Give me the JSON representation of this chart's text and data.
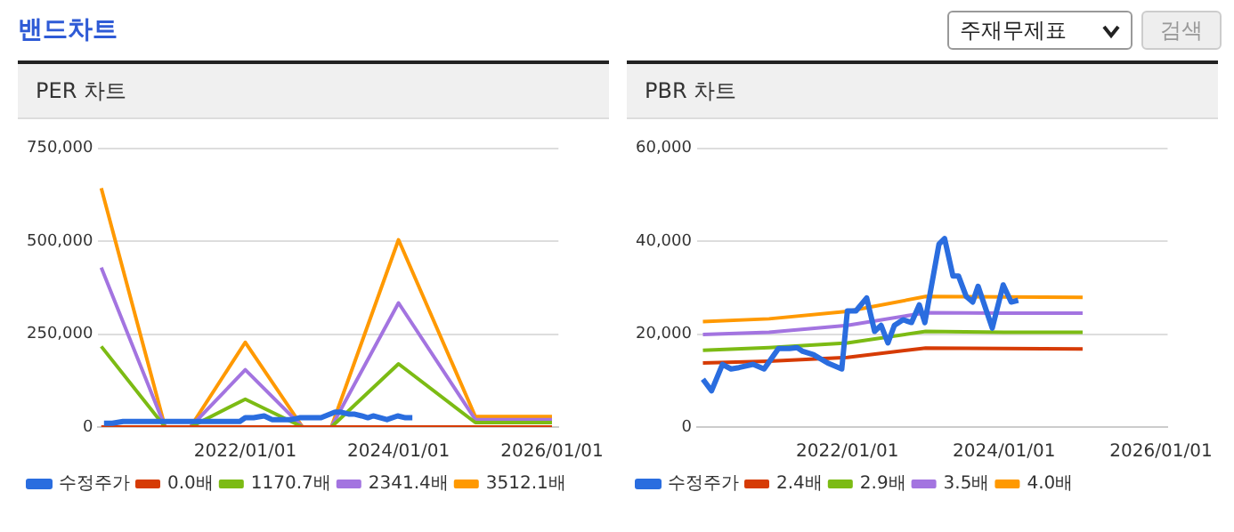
{
  "chart_data": [
    {
      "type": "line",
      "title": "PER 차트",
      "annotations": [
        "밴드차트",
        "주재무제표",
        "검색"
      ],
      "xlim": [
        "2020-02-01",
        "2026-02-01"
      ],
      "xticks": [
        {
          "value": "2022-01-01",
          "label": "2022/01/01"
        },
        {
          "value": "2024-01-01",
          "label": "2024/01/01"
        },
        {
          "value": "2026-01-01",
          "label": "2026/01/01"
        }
      ],
      "ylim": [
        0,
        750000
      ],
      "yticks": [
        {
          "value": 0,
          "label": "0"
        },
        {
          "value": 250000,
          "label": "250,000"
        },
        {
          "value": 500000,
          "label": "500,000"
        },
        {
          "value": 750000,
          "label": "750,000"
        }
      ],
      "grid": "y",
      "legend": "bottom",
      "series": [
        {
          "name": "수정주가",
          "color": "#2a6ddf",
          "x": [
            "2020-02-28",
            "2020-04-08",
            "2020-05-29",
            "2020-07-08",
            "2020-08-14",
            "2020-10-19",
            "2020-12-09",
            "2021-02-14",
            "2021-04-06",
            "2021-05-12",
            "2021-06-07",
            "2021-07-27",
            "2021-10-01",
            "2021-12-06",
            "2022-01-01",
            "2022-02-10",
            "2022-04-01",
            "2022-05-08",
            "2022-06-07",
            "2022-07-09",
            "2022-08-08",
            "2022-09-17",
            "2022-10-27",
            "2022-12-02",
            "2022-12-28",
            "2023-03-04",
            "2023-03-30",
            "2023-05-08",
            "2023-06-03",
            "2023-07-09",
            "2023-08-08",
            "2023-09-02",
            "2023-11-07",
            "2023-12-28",
            "2024-02-03",
            "2024-03-07"
          ],
          "values": [
            10000,
            10000,
            15000,
            15000,
            15000,
            15000,
            15000,
            15000,
            15000,
            15000,
            15000,
            15000,
            15000,
            15000,
            25000,
            25000,
            30000,
            20000,
            20000,
            20000,
            20000,
            25000,
            25000,
            25000,
            25000,
            40000,
            40000,
            35000,
            35000,
            30000,
            25000,
            30000,
            20000,
            30000,
            25000,
            25000
          ]
        },
        {
          "name": "0.0배",
          "color": "#d63b05",
          "x": [
            "2020-02-15",
            "2020-12-15",
            "2021-04-15",
            "2022-01-01",
            "2022-10-01",
            "2023-02-15",
            "2024-01-01",
            "2025-01-01",
            "2026-01-01"
          ],
          "values": [
            0,
            0,
            0,
            0,
            0,
            0,
            0,
            0,
            0
          ]
        },
        {
          "name": "1170.7배",
          "color": "#7cbb14",
          "x": [
            "2020-02-15",
            "2020-12-15",
            "2021-04-15",
            "2022-01-01",
            "2022-10-01",
            "2023-02-15",
            "2024-01-01",
            "2025-01-01",
            "2026-01-01"
          ],
          "values": [
            217000,
            0,
            0,
            75000,
            0,
            0,
            170000,
            12000,
            12000
          ]
        },
        {
          "name": "2341.4배",
          "color": "#a374e0",
          "x": [
            "2020-02-15",
            "2020-12-15",
            "2021-04-15",
            "2022-01-01",
            "2022-10-01",
            "2023-02-15",
            "2024-01-01",
            "2025-01-01",
            "2026-01-01"
          ],
          "values": [
            429000,
            0,
            0,
            154000,
            0,
            0,
            334000,
            20000,
            20000
          ]
        },
        {
          "name": "3512.1배",
          "color": "#ff9900",
          "x": [
            "2020-02-15",
            "2020-12-15",
            "2021-04-15",
            "2022-01-01",
            "2022-10-01",
            "2023-02-15",
            "2024-01-01",
            "2025-01-01",
            "2026-01-01"
          ],
          "values": [
            643000,
            0,
            0,
            228000,
            0,
            0,
            504000,
            28000,
            28000
          ]
        }
      ]
    },
    {
      "type": "line",
      "title": "PBR 차트",
      "xlim": [
        "2020-02-01",
        "2026-02-01"
      ],
      "xticks": [
        {
          "value": "2022-01-01",
          "label": "2022/01/01"
        },
        {
          "value": "2024-01-01",
          "label": "2024/01/01"
        },
        {
          "value": "2026-01-01",
          "label": "2026/01/01"
        }
      ],
      "ylim": [
        0,
        60000
      ],
      "yticks": [
        {
          "value": 0,
          "label": "0"
        },
        {
          "value": 20000,
          "label": "20,000"
        },
        {
          "value": 40000,
          "label": "40,000"
        },
        {
          "value": 60000,
          "label": "60,000"
        }
      ],
      "grid": "y",
      "legend": "bottom",
      "series": [
        {
          "name": "수정주가",
          "color": "#2a6ddf",
          "x": [
            "2020-02-28",
            "2020-04-08",
            "2020-05-29",
            "2020-07-08",
            "2020-08-14",
            "2020-10-19",
            "2020-12-09",
            "2021-02-14",
            "2021-04-06",
            "2021-05-12",
            "2021-06-07",
            "2021-07-27",
            "2021-10-01",
            "2021-12-06",
            "2022-01-01",
            "2022-02-10",
            "2022-04-01",
            "2022-05-08",
            "2022-06-07",
            "2022-07-09",
            "2022-08-08",
            "2022-09-17",
            "2022-10-27",
            "2022-12-02",
            "2022-12-28",
            "2023-03-04",
            "2023-03-30",
            "2023-05-08",
            "2023-06-03",
            "2023-07-09",
            "2023-08-08",
            "2023-09-02",
            "2023-11-07",
            "2023-12-28",
            "2024-02-03",
            "2024-03-07"
          ],
          "values": [
            10300,
            7800,
            13500,
            12500,
            12800,
            13500,
            12500,
            16900,
            16900,
            17100,
            16300,
            15600,
            13800,
            12500,
            25000,
            25000,
            27800,
            20600,
            21900,
            18100,
            21900,
            23100,
            22500,
            26300,
            22500,
            39400,
            40600,
            32500,
            32500,
            28100,
            26900,
            30300,
            21300,
            30600,
            26900,
            27300
          ]
        },
        {
          "name": "2.4배",
          "color": "#d63b05",
          "x": [
            "2020-02-28",
            "2021-01-01",
            "2022-01-01",
            "2023-01-01",
            "2024-01-01",
            "2025-01-01"
          ],
          "values": [
            13800,
            14200,
            15000,
            17000,
            16900,
            16800
          ]
        },
        {
          "name": "2.9배",
          "color": "#7cbb14",
          "x": [
            "2020-02-28",
            "2021-01-01",
            "2022-01-01",
            "2023-01-01",
            "2024-01-01",
            "2025-01-01"
          ],
          "values": [
            16500,
            17100,
            18100,
            20600,
            20400,
            20400
          ]
        },
        {
          "name": "3.5배",
          "color": "#a374e0",
          "x": [
            "2020-02-28",
            "2021-01-01",
            "2022-01-01",
            "2023-01-01",
            "2024-01-01",
            "2025-01-01"
          ],
          "values": [
            19900,
            20400,
            21900,
            24600,
            24500,
            24500
          ]
        },
        {
          "name": "4.0배",
          "color": "#ff9900",
          "x": [
            "2020-02-28",
            "2021-01-01",
            "2022-01-01",
            "2023-01-01",
            "2024-01-01",
            "2025-01-01"
          ],
          "values": [
            22700,
            23300,
            24900,
            28100,
            28000,
            27900
          ]
        }
      ]
    }
  ]
}
